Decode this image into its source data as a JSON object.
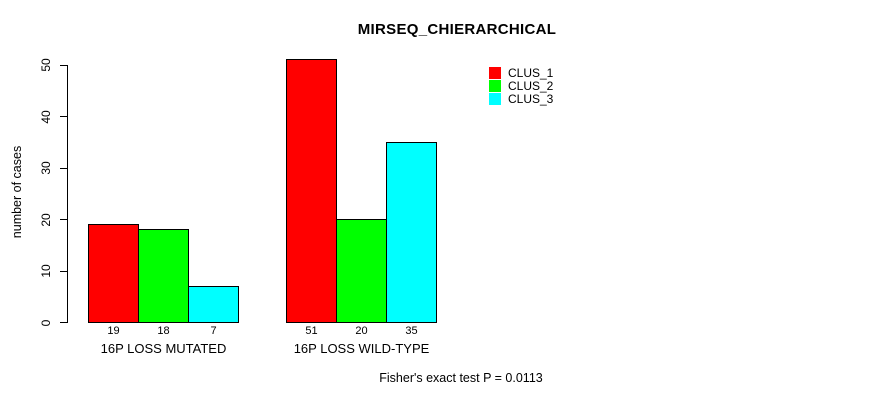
{
  "chart_data": {
    "type": "bar",
    "title": "MIRSEQ_CHIERARCHICAL",
    "ylabel": "number of cases",
    "xlabel": "",
    "ylim": [
      0,
      50
    ],
    "yticks": [
      0,
      10,
      20,
      30,
      40,
      50
    ],
    "categories": [
      "16P LOSS MUTATED",
      "16P LOSS WILD-TYPE"
    ],
    "series": [
      {
        "name": "CLUS_1",
        "color": "#ff0000",
        "values": [
          19,
          51
        ]
      },
      {
        "name": "CLUS_2",
        "color": "#00ff00",
        "values": [
          18,
          20
        ]
      },
      {
        "name": "CLUS_3",
        "color": "#00ffff",
        "values": [
          7,
          35
        ]
      }
    ],
    "show_value_labels_under_bars": true,
    "legend": {
      "position": "top-right",
      "entries": [
        {
          "label": "CLUS_1",
          "color": "#ff0000"
        },
        {
          "label": "CLUS_2",
          "color": "#00ff00"
        },
        {
          "label": "CLUS_3",
          "color": "#00ffff"
        }
      ]
    },
    "annotation": "Fisher's exact test P = 0.0113",
    "grid": false,
    "axis_color": "#000000",
    "background": "#ffffff"
  }
}
